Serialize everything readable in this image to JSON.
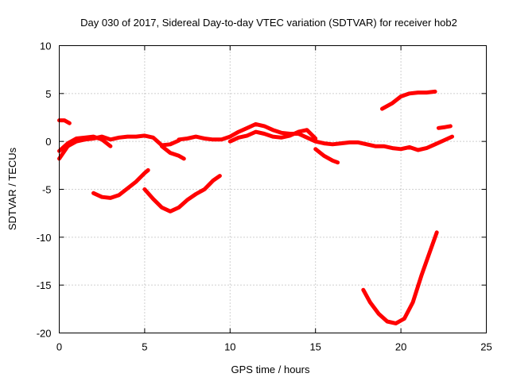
{
  "chart_data": {
    "type": "line",
    "title": "Day 030 of 2017, Sidereal Day-to-day VTEC variation (SDTVAR) for receiver hob2",
    "xlabel": "GPS time / hours",
    "ylabel": "SDTVAR / TECUs",
    "xlim": [
      0,
      25
    ],
    "ylim": [
      -20,
      10
    ],
    "xticks": [
      0,
      5,
      10,
      15,
      20,
      25
    ],
    "yticks": [
      10,
      5,
      0,
      -5,
      -10,
      -15,
      -20
    ],
    "grid": true,
    "color": "#ff0000",
    "series": [
      {
        "name": "trace-1",
        "x": [
          0.0,
          0.3,
          0.6
        ],
        "y": [
          2.2,
          2.2,
          1.9
        ]
      },
      {
        "name": "trace-2",
        "x": [
          0.0,
          0.5,
          1.0,
          1.5,
          2.0,
          2.5,
          3.0,
          3.5,
          4.0,
          4.5,
          5.0,
          5.5,
          6.0,
          6.5,
          7.0
        ],
        "y": [
          -1.8,
          -0.5,
          0.0,
          0.2,
          0.3,
          0.5,
          0.2,
          0.4,
          0.5,
          0.5,
          0.6,
          0.4,
          -0.4,
          -0.3,
          0.1
        ]
      },
      {
        "name": "trace-3",
        "x": [
          0.0,
          0.5,
          1.0,
          1.5,
          2.0,
          2.5,
          3.0
        ],
        "y": [
          -1.0,
          -0.2,
          0.3,
          0.4,
          0.5,
          0.2,
          -0.5
        ]
      },
      {
        "name": "trace-4",
        "x": [
          2.0,
          2.5,
          3.0,
          3.5,
          4.0,
          4.5,
          5.0,
          5.2
        ],
        "y": [
          -5.4,
          -5.8,
          -5.9,
          -5.6,
          -4.9,
          -4.2,
          -3.3,
          -3.0
        ]
      },
      {
        "name": "trace-5",
        "x": [
          5.0,
          5.5,
          6.0,
          6.5,
          7.0,
          7.5,
          8.0,
          8.5,
          9.0,
          9.4
        ],
        "y": [
          -5.0,
          -6.0,
          -6.9,
          -7.3,
          -6.9,
          -6.1,
          -5.5,
          -5.0,
          -4.1,
          -3.6
        ]
      },
      {
        "name": "trace-6",
        "x": [
          6.0,
          6.5,
          7.0,
          7.3
        ],
        "y": [
          -0.5,
          -1.2,
          -1.5,
          -1.8
        ]
      },
      {
        "name": "trace-7",
        "x": [
          7.0,
          7.5,
          8.0,
          8.5,
          9.0,
          9.5,
          10.0,
          10.5,
          11.0,
          11.5,
          12.0,
          12.5,
          13.0,
          13.5,
          14.0,
          14.5,
          15.0,
          15.5,
          16.0,
          16.5,
          17.0,
          17.5,
          18.0,
          18.5,
          19.0,
          19.5,
          20.0,
          20.5,
          21.0,
          21.5,
          22.0,
          22.5,
          23.0
        ],
        "y": [
          0.2,
          0.3,
          0.5,
          0.3,
          0.2,
          0.2,
          0.5,
          1.0,
          1.4,
          1.8,
          1.6,
          1.2,
          0.9,
          0.8,
          0.8,
          0.4,
          0.0,
          -0.2,
          -0.3,
          -0.2,
          -0.1,
          -0.1,
          -0.3,
          -0.5,
          -0.5,
          -0.7,
          -0.8,
          -0.6,
          -0.9,
          -0.7,
          -0.3,
          0.1,
          0.5
        ]
      },
      {
        "name": "trace-8",
        "x": [
          10.0,
          10.5,
          11.0,
          11.5,
          12.0,
          12.5,
          13.0,
          13.5,
          14.0,
          14.5,
          15.0
        ],
        "y": [
          0.0,
          0.4,
          0.6,
          1.0,
          0.8,
          0.5,
          0.4,
          0.6,
          1.0,
          1.2,
          0.3
        ]
      },
      {
        "name": "trace-9",
        "x": [
          15.0,
          15.5,
          16.0,
          16.3
        ],
        "y": [
          -0.8,
          -1.5,
          -2.0,
          -2.2
        ]
      },
      {
        "name": "trace-10",
        "x": [
          17.8,
          18.2,
          18.7,
          19.2,
          19.7,
          20.2,
          20.7,
          21.2,
          21.7,
          22.1
        ],
        "y": [
          -15.5,
          -16.8,
          -18.0,
          -18.8,
          -19.0,
          -18.5,
          -16.8,
          -14.0,
          -11.5,
          -9.5
        ]
      },
      {
        "name": "trace-11",
        "x": [
          18.9,
          19.5,
          20.0,
          20.5,
          21.0,
          21.5,
          22.0
        ],
        "y": [
          3.4,
          4.0,
          4.7,
          5.0,
          5.1,
          5.1,
          5.2
        ]
      },
      {
        "name": "trace-12",
        "x": [
          22.2,
          22.6,
          22.9
        ],
        "y": [
          1.4,
          1.5,
          1.6
        ]
      }
    ]
  }
}
